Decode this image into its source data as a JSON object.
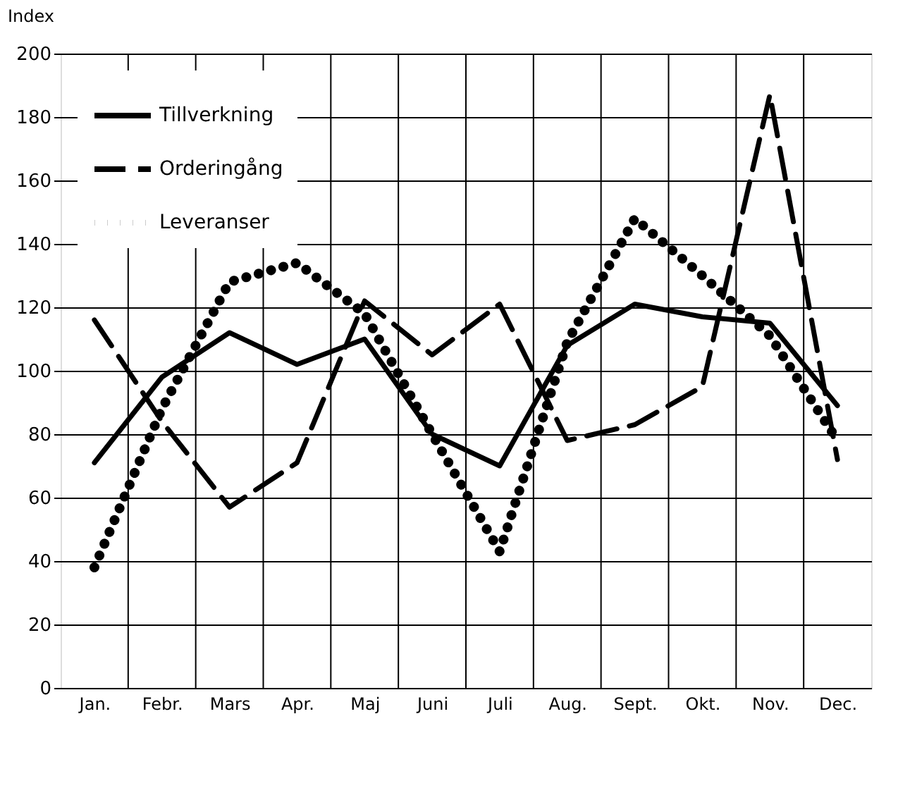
{
  "chart_data": {
    "type": "line",
    "ylabel": "Index",
    "categories": [
      "Jan.",
      "Febr.",
      "Mars",
      "Apr.",
      "Maj",
      "Juni",
      "Juli",
      "Aug.",
      "Sept.",
      "Okt.",
      "Nov.",
      "Dec."
    ],
    "series": [
      {
        "name": "Tillverkning",
        "color": "#000000",
        "line_style": "solid",
        "values": [
          71,
          98,
          112,
          102,
          110,
          80,
          70,
          108,
          121,
          117,
          115,
          89
        ]
      },
      {
        "name": "Orderingång",
        "color": "#000000",
        "line_style": "dashed",
        "values": [
          116,
          84,
          57,
          71,
          122,
          105,
          121,
          78,
          83,
          95,
          187,
          72
        ]
      },
      {
        "name": "Leveranser",
        "color": "#000000",
        "line_style": "dotted",
        "values": [
          38,
          88,
          128,
          134,
          118,
          80,
          43,
          109,
          148,
          130,
          111,
          78
        ]
      }
    ],
    "ylim": [
      0,
      200
    ],
    "yticks": [
      0,
      20,
      40,
      60,
      80,
      100,
      120,
      140,
      160,
      180,
      200
    ],
    "grid": true,
    "legend": "top left",
    "marker": "none"
  }
}
